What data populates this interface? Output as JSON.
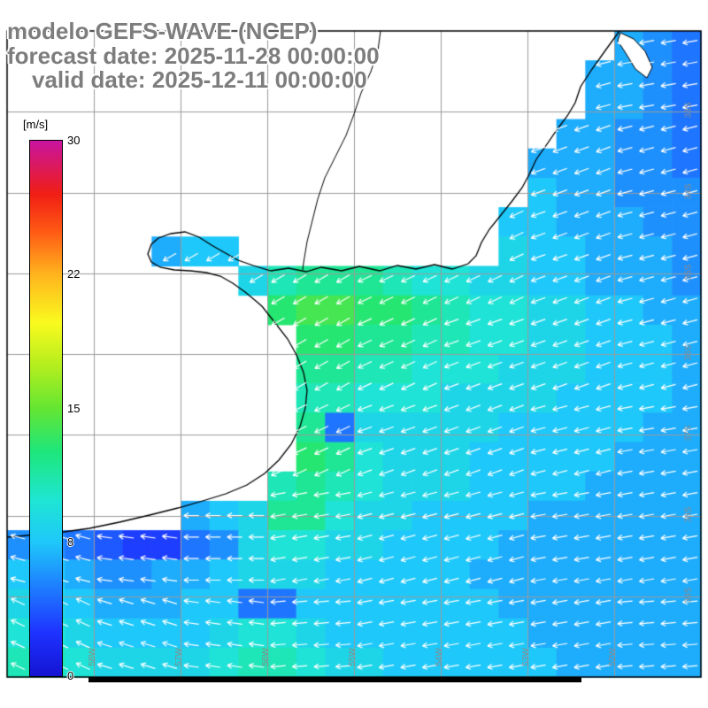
{
  "header": {
    "title": "modelo GEFS-WAVE (NCEP)",
    "forecast_line": "forecast date: 2025-11-28 00:00:00",
    "valid_line": "valid date: 2025-12-11 00:00:00"
  },
  "colorbar": {
    "units_label": "[m/s]",
    "ticks": [
      "30",
      "22",
      "15",
      "8",
      "0"
    ],
    "tick_values": [
      30,
      22,
      15,
      8,
      0
    ],
    "stops": [
      {
        "f": 0.0,
        "c": "#1414d2"
      },
      {
        "f": 0.08,
        "c": "#1e32ff"
      },
      {
        "f": 0.16,
        "c": "#1e78ff"
      },
      {
        "f": 0.25,
        "c": "#1ec8fa"
      },
      {
        "f": 0.33,
        "c": "#1ee6d2"
      },
      {
        "f": 0.42,
        "c": "#1ee67a"
      },
      {
        "f": 0.5,
        "c": "#64e632"
      },
      {
        "f": 0.58,
        "c": "#b4ee1e"
      },
      {
        "f": 0.66,
        "c": "#fafa1e"
      },
      {
        "f": 0.75,
        "c": "#ffb41e"
      },
      {
        "f": 0.83,
        "c": "#ff5a14"
      },
      {
        "f": 0.9,
        "c": "#f01e14"
      },
      {
        "f": 1.0,
        "c": "#c814a0"
      }
    ]
  },
  "map": {
    "lat_labels": [
      "33S",
      "34S",
      "35S",
      "36S",
      "37S",
      "38S",
      "39S"
    ],
    "lon_labels": [
      "58W",
      "57W",
      "56W",
      "55W",
      "54W",
      "53W",
      "52W"
    ],
    "grid_color": "#9a9a9a",
    "arrow_color": "#ffffff",
    "land_color": "#ffffff",
    "coast_color": "#000000",
    "border_color": "#000000"
  },
  "chart_data": {
    "type": "heatmap",
    "title": "modelo GEFS-WAVE (NCEP)",
    "forecast_date": "2025-11-28 00:00:00",
    "valid_date": "2025-12-11 00:00:00",
    "units": "m/s",
    "colorbar_ticks": [
      0,
      8,
      15,
      22,
      30
    ],
    "lon_ticks": [
      "58W",
      "57W",
      "56W",
      "55W",
      "54W",
      "53W",
      "52W"
    ],
    "lat_ticks": [
      "33S",
      "34S",
      "35S",
      "36S",
      "37S",
      "38S",
      "39S"
    ],
    "legend_position": "left",
    "grid": {
      "cols": 24,
      "rows": 22,
      "land_value": -1,
      "values": [
        [
          -1,
          -1,
          -1,
          -1,
          -1,
          -1,
          -1,
          -1,
          -1,
          -1,
          -1,
          -1,
          -1,
          -1,
          -1,
          -1,
          -1,
          -1,
          -1,
          -1,
          -1,
          7,
          6,
          5
        ],
        [
          -1,
          -1,
          -1,
          -1,
          -1,
          -1,
          -1,
          -1,
          -1,
          -1,
          -1,
          -1,
          -1,
          -1,
          -1,
          -1,
          -1,
          -1,
          -1,
          -1,
          7,
          7,
          6,
          5
        ],
        [
          -1,
          -1,
          -1,
          -1,
          -1,
          -1,
          -1,
          -1,
          -1,
          -1,
          -1,
          -1,
          -1,
          -1,
          -1,
          -1,
          -1,
          -1,
          -1,
          -1,
          7,
          7,
          6,
          5
        ],
        [
          -1,
          -1,
          -1,
          -1,
          -1,
          -1,
          -1,
          -1,
          -1,
          -1,
          -1,
          -1,
          -1,
          -1,
          -1,
          -1,
          -1,
          -1,
          -1,
          7,
          7,
          6,
          6,
          5
        ],
        [
          -1,
          -1,
          -1,
          -1,
          -1,
          -1,
          -1,
          -1,
          -1,
          -1,
          -1,
          -1,
          -1,
          -1,
          -1,
          -1,
          -1,
          -1,
          7,
          7,
          7,
          6,
          6,
          5
        ],
        [
          -1,
          -1,
          -1,
          -1,
          -1,
          -1,
          -1,
          -1,
          -1,
          -1,
          -1,
          -1,
          -1,
          -1,
          -1,
          -1,
          -1,
          -1,
          8,
          7,
          7,
          6,
          6,
          6
        ],
        [
          -1,
          -1,
          -1,
          -1,
          -1,
          -1,
          -1,
          -1,
          -1,
          -1,
          -1,
          -1,
          -1,
          -1,
          -1,
          -1,
          -1,
          8,
          8,
          7,
          7,
          7,
          6,
          6
        ],
        [
          -1,
          -1,
          -1,
          -1,
          -1,
          7,
          8,
          8,
          -1,
          -1,
          -1,
          -1,
          -1,
          -1,
          -1,
          -1,
          -1,
          9,
          8,
          8,
          7,
          7,
          7,
          6
        ],
        [
          -1,
          -1,
          -1,
          -1,
          -1,
          -1,
          -1,
          -1,
          9,
          11,
          12,
          12,
          12,
          11,
          10,
          10,
          9,
          9,
          8,
          8,
          7,
          7,
          7,
          6
        ],
        [
          -1,
          -1,
          -1,
          -1,
          -1,
          -1,
          -1,
          -1,
          -1,
          13,
          14,
          14,
          13,
          13,
          12,
          11,
          10,
          10,
          9,
          9,
          8,
          8,
          7,
          7
        ],
        [
          -1,
          -1,
          -1,
          -1,
          -1,
          -1,
          -1,
          -1,
          -1,
          -1,
          13,
          13,
          12,
          12,
          11,
          11,
          10,
          10,
          9,
          9,
          8,
          8,
          8,
          7
        ],
        [
          -1,
          -1,
          -1,
          -1,
          -1,
          -1,
          -1,
          -1,
          -1,
          -1,
          12,
          12,
          11,
          11,
          10,
          10,
          10,
          9,
          9,
          9,
          8,
          8,
          8,
          7
        ],
        [
          -1,
          -1,
          -1,
          -1,
          -1,
          -1,
          -1,
          -1,
          -1,
          -1,
          11,
          11,
          10,
          10,
          10,
          9,
          9,
          9,
          9,
          8,
          8,
          8,
          8,
          7
        ],
        [
          -1,
          -1,
          -1,
          -1,
          -1,
          -1,
          -1,
          -1,
          -1,
          -1,
          12,
          5,
          9,
          9,
          9,
          9,
          9,
          8,
          8,
          8,
          8,
          8,
          7,
          7
        ],
        [
          -1,
          -1,
          -1,
          -1,
          -1,
          -1,
          -1,
          -1,
          -1,
          -1,
          13,
          12,
          10,
          9,
          9,
          9,
          8,
          8,
          8,
          8,
          8,
          7,
          7,
          7
        ],
        [
          -1,
          -1,
          -1,
          -1,
          -1,
          -1,
          -1,
          -1,
          -1,
          11,
          12,
          11,
          10,
          9,
          9,
          9,
          8,
          8,
          8,
          8,
          7,
          7,
          7,
          7
        ],
        [
          -1,
          -1,
          -1,
          -1,
          -1,
          -1,
          7,
          8,
          9,
          12,
          12,
          10,
          9,
          9,
          8,
          8,
          8,
          8,
          7,
          7,
          7,
          7,
          7,
          7
        ],
        [
          6,
          6,
          5,
          4,
          3,
          3,
          5,
          6,
          9,
          10,
          10,
          9,
          9,
          8,
          8,
          8,
          8,
          7,
          7,
          7,
          7,
          7,
          7,
          7
        ],
        [
          8,
          8,
          7,
          6,
          6,
          7,
          7,
          8,
          9,
          9,
          9,
          8,
          8,
          8,
          8,
          8,
          7,
          7,
          7,
          7,
          7,
          7,
          7,
          7
        ],
        [
          9,
          9,
          8,
          7,
          7,
          7,
          8,
          8,
          5,
          5,
          8,
          8,
          8,
          8,
          8,
          8,
          8,
          7,
          7,
          7,
          7,
          7,
          7,
          7
        ],
        [
          10,
          10,
          9,
          8,
          8,
          8,
          8,
          9,
          10,
          10,
          9,
          8,
          8,
          8,
          8,
          8,
          8,
          8,
          7,
          7,
          7,
          7,
          7,
          7
        ],
        [
          11,
          11,
          10,
          9,
          9,
          9,
          9,
          10,
          11,
          11,
          10,
          9,
          9,
          8,
          8,
          8,
          8,
          8,
          8,
          7,
          7,
          7,
          7,
          7
        ]
      ]
    },
    "directions_deg": {
      "cols": 8,
      "rows": 7,
      "convention": "0=east, counterclockwise, arrows point toward heading",
      "values": [
        [
          200,
          200,
          200,
          200,
          200,
          200,
          195,
          190
        ],
        [
          205,
          205,
          205,
          205,
          205,
          205,
          200,
          195
        ],
        [
          210,
          210,
          210,
          210,
          205,
          205,
          200,
          195
        ],
        [
          205,
          210,
          215,
          210,
          205,
          200,
          200,
          195
        ],
        [
          195,
          200,
          205,
          205,
          200,
          200,
          195,
          190
        ],
        [
          165,
          172,
          180,
          190,
          195,
          195,
          190,
          190
        ],
        [
          155,
          163,
          172,
          185,
          190,
          190,
          190,
          185
        ]
      ]
    }
  }
}
